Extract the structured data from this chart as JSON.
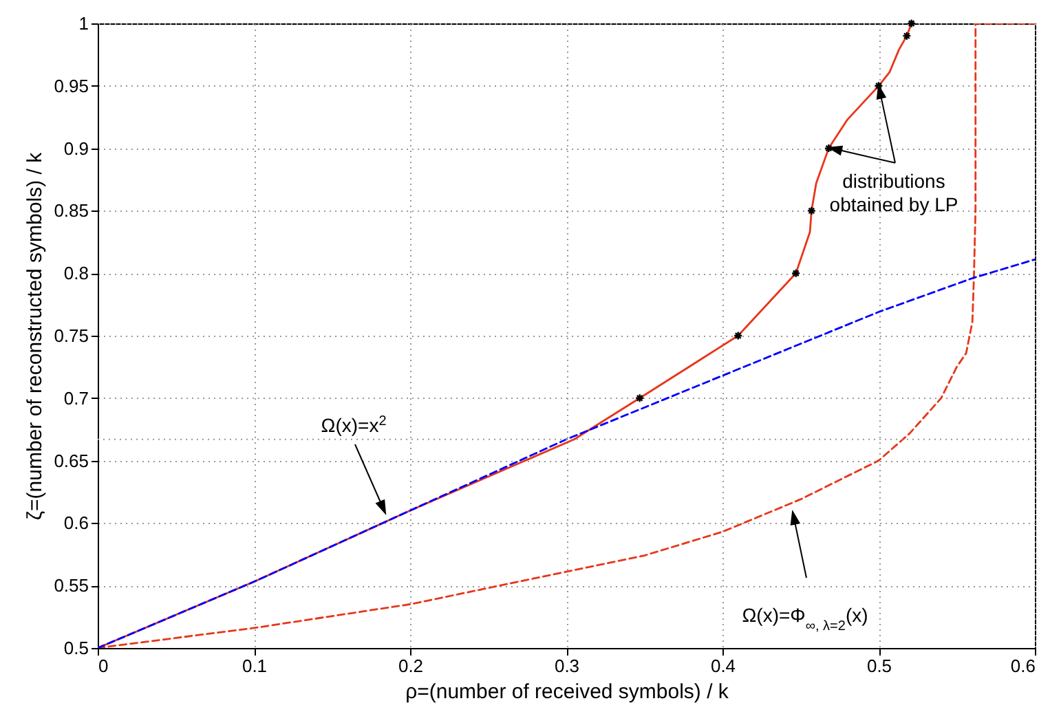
{
  "chart_data": {
    "type": "line",
    "xlabel": "ρ=(number of received symbols) / k",
    "ylabel": "ζ=(number of reconstructed symbols) / k",
    "xlim": [
      0,
      0.6
    ],
    "xticks": [
      0,
      0.1,
      0.2,
      0.3,
      0.4,
      0.5,
      0.6
    ],
    "ylim": [
      0.5,
      1
    ],
    "yticks": [
      0.5,
      0.55,
      0.6,
      0.65,
      0.7,
      0.75,
      0.8,
      0.85,
      0.9,
      0.95,
      1
    ],
    "grid": true,
    "ref_lines": [
      {
        "axis": "y",
        "value": 0.667,
        "color": "#999999",
        "line_style": "dotted"
      }
    ],
    "series": [
      {
        "color": "#e8361a",
        "line_style": "dashed",
        "marker": "none",
        "x": [
          0,
          0.1,
          0.2,
          0.3,
          0.35,
          0.4,
          0.45,
          0.5,
          0.52,
          0.54,
          0.55,
          0.556,
          0.56,
          0.561,
          0.562,
          0.562,
          0.6
        ],
        "values": [
          0.5,
          0.516,
          0.535,
          0.561,
          0.574,
          0.593,
          0.619,
          0.65,
          0.672,
          0.7,
          0.725,
          0.736,
          0.761,
          0.798,
          0.85,
          1,
          1
        ]
      },
      {
        "color": "#e8361a",
        "line_style": "solid",
        "marker": "none",
        "x": [
          0,
          0.1,
          0.2,
          0.305,
          0.347,
          0.41,
          0.447,
          0.456,
          0.457,
          0.46,
          0.468,
          0.48,
          0.5,
          0.507,
          0.513,
          0.518,
          0.521
        ],
        "values": [
          0.5,
          0.553,
          0.61,
          0.667,
          0.7,
          0.75,
          0.8,
          0.833,
          0.85,
          0.872,
          0.9,
          0.923,
          0.95,
          0.961,
          0.979,
          0.99,
          1
        ]
      },
      {
        "color": "#0000ff",
        "line_style": "dashed",
        "marker": "none",
        "x": [
          0,
          0.1,
          0.2,
          0.3,
          0.4,
          0.5,
          0.56,
          0.6
        ],
        "values": [
          0.5,
          0.553,
          0.61,
          0.667,
          0.718,
          0.769,
          0.796,
          0.811
        ]
      },
      {
        "type": "scatter",
        "color": "#000000",
        "marker": "cross",
        "x": [
          0.347,
          0.41,
          0.447,
          0.457,
          0.468,
          0.5,
          0.518,
          0.521
        ],
        "values": [
          0.7,
          0.75,
          0.8,
          0.85,
          0.9,
          0.95,
          0.99,
          1
        ]
      }
    ],
    "annotations": [
      "Ω(x)=x$^{2}$",
      {
        "text": "distributions obtained by LP",
        "x": 0.5,
        "y": 0.95
      },
      "Ω(x)=Φ$_{∞, λ=2}$(x)"
    ]
  }
}
